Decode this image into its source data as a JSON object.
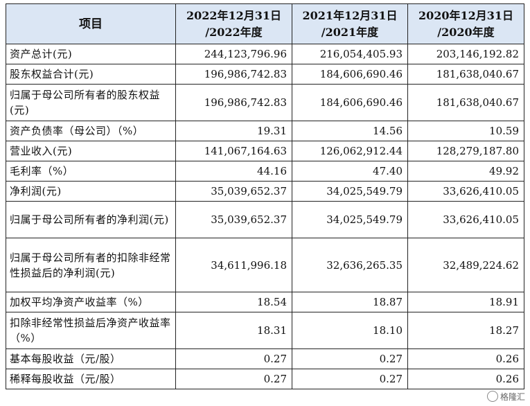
{
  "table": {
    "headers": [
      "项目",
      "2022年12月31日\n/2022年度",
      "2021年12月31日\n/2021年度",
      "2020年12月31日\n/2020年度"
    ],
    "rows": [
      {
        "label": "资产总计(元)",
        "values": [
          "244,123,796.96",
          "216,054,405.93",
          "203,146,192.82"
        ]
      },
      {
        "label": "股东权益合计(元)",
        "values": [
          "196,986,742.83",
          "184,606,690.46",
          "181,638,040.67"
        ]
      },
      {
        "label": "归属于母公司所有者的股东权益(元)",
        "values": [
          "196,986,742.83",
          "184,606,690.46",
          "181,638,040.67"
        ]
      },
      {
        "label": "资产负债率（母公司）（%）",
        "values": [
          "19.31",
          "14.56",
          "10.59"
        ]
      },
      {
        "label": "营业收入(元)",
        "values": [
          "141,067,164.63",
          "126,062,912.44",
          "128,279,187.80"
        ]
      },
      {
        "label": "毛利率（%）",
        "values": [
          "44.16",
          "47.40",
          "49.92"
        ]
      },
      {
        "label": "净利润(元)",
        "values": [
          "35,039,652.37",
          "34,025,549.79",
          "33,626,410.05"
        ]
      },
      {
        "label": "归属于母公司所有者的净利润(元)",
        "values": [
          "35,039,652.37",
          "34,025,549.79",
          "33,626,410.05"
        ]
      },
      {
        "label": "归属于母公司所有者的扣除非经常性损益后的净利润(元)",
        "values": [
          "34,611,996.18",
          "32,636,265.35",
          "32,489,224.62"
        ]
      },
      {
        "label": "加权平均净资产收益率（%）",
        "values": [
          "18.54",
          "18.87",
          "18.91"
        ]
      },
      {
        "label": "扣除非经常性损益后净资产收益率（%）",
        "values": [
          "18.31",
          "18.10",
          "18.27"
        ]
      },
      {
        "label": "基本每股收益（元/股）",
        "values": [
          "0.27",
          "0.27",
          "0.26"
        ]
      },
      {
        "label": "稀释每股收益（元/股）",
        "values": [
          "0.27",
          "0.27",
          "0.26"
        ]
      }
    ]
  },
  "watermark": {
    "text": "格隆汇",
    "icon": "globe-icon"
  }
}
